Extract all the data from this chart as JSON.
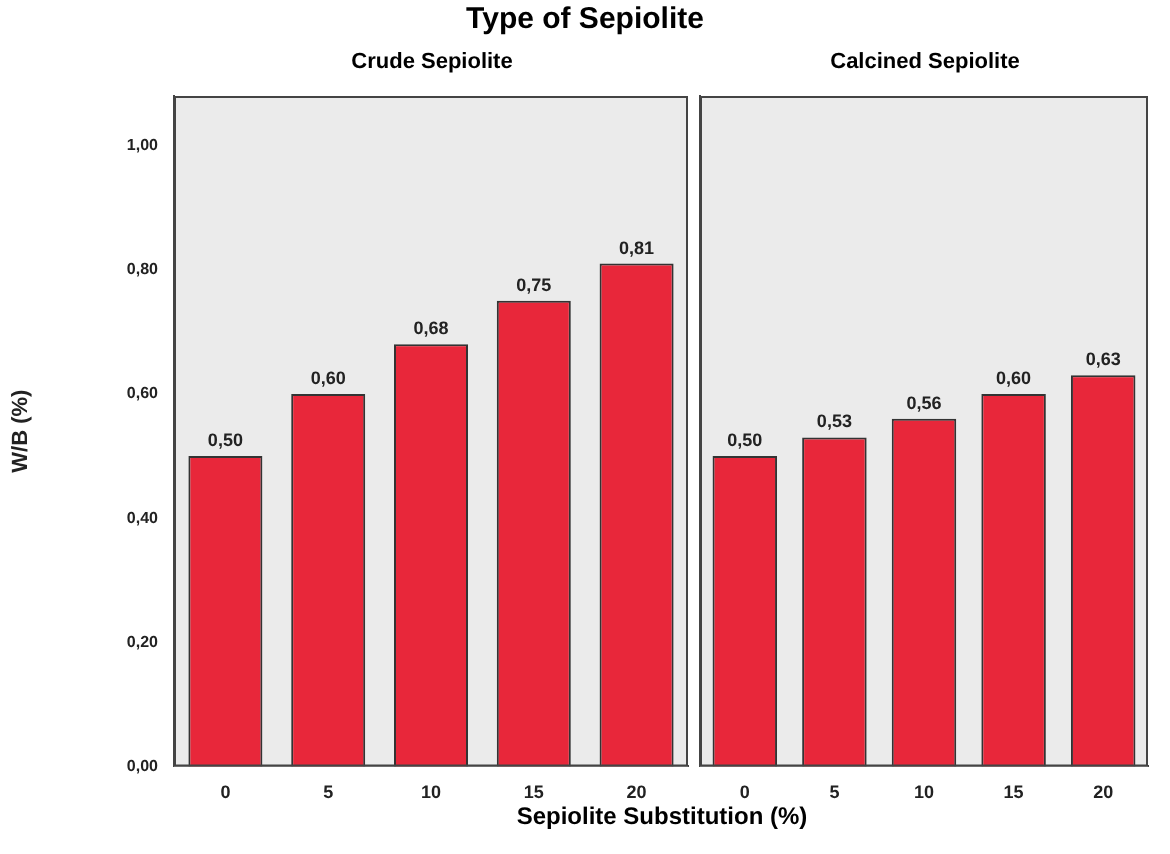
{
  "chart_data": [
    {
      "type": "bar",
      "title": "Type of Sepiolite",
      "subtitle": "Crude Sepiolite",
      "xlabel": "Sepiolite Substitution (%)",
      "ylabel": "W/B (%)",
      "categories": [
        "0",
        "5",
        "10",
        "15",
        "20"
      ],
      "values": [
        0.5,
        0.6,
        0.68,
        0.75,
        0.81
      ],
      "value_labels": [
        "0,50",
        "0,60",
        "0,68",
        "0,75",
        "0,81"
      ],
      "color": "#e8273a",
      "ylim": [
        0,
        1.08
      ],
      "yticks": [
        {
          "value": 0,
          "label": "0,00"
        },
        {
          "value": 0.2,
          "label": "0,20"
        },
        {
          "value": 0.4,
          "label": "0,40"
        },
        {
          "value": 0.6,
          "label": "0,60"
        },
        {
          "value": 0.8,
          "label": "0,80"
        },
        {
          "value": 1,
          "label": "1,00"
        }
      ],
      "grid": false,
      "legend": false
    },
    {
      "type": "bar",
      "subtitle": "Calcined Sepiolite",
      "categories": [
        "0",
        "5",
        "10",
        "15",
        "20"
      ],
      "values": [
        0.5,
        0.53,
        0.56,
        0.6,
        0.63
      ],
      "value_labels": [
        "0,50",
        "0,53",
        "0,56",
        "0,60",
        "0,63"
      ],
      "color": "#e8273a",
      "ylim": [
        0,
        1.08
      ],
      "tick_labels": "x",
      "grid": false,
      "legend": false
    }
  ]
}
